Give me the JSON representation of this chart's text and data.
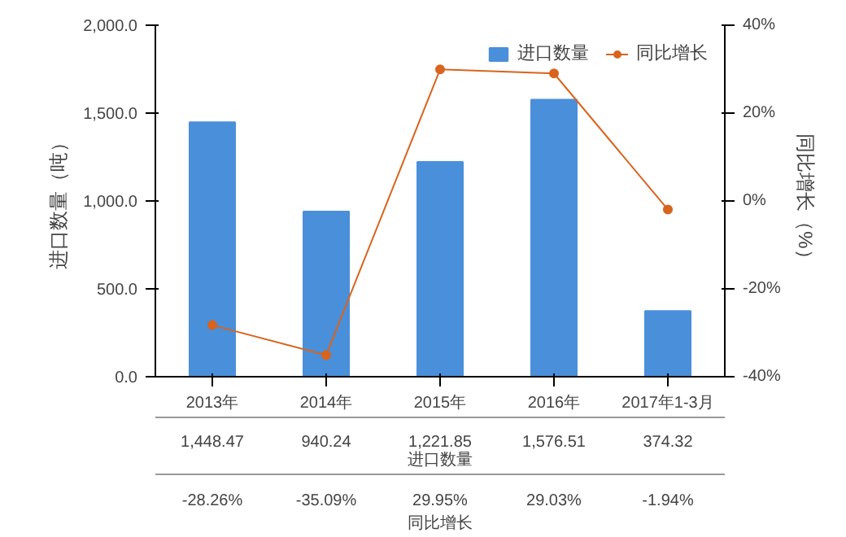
{
  "chart_data": {
    "type": "bar",
    "categories": [
      "2013年",
      "2014年",
      "2015年",
      "2016年",
      "2017年1-3月"
    ],
    "ylabel": "进口数量（吨）",
    "y2label": "同比增长（%）",
    "ylim": [
      0,
      2000
    ],
    "yticks": [
      {
        "value": 0,
        "label": "0.0"
      },
      {
        "value": 500,
        "label": "500.0"
      },
      {
        "value": 1000,
        "label": "1,000.0"
      },
      {
        "value": 1500,
        "label": "1,500.0"
      },
      {
        "value": 2000,
        "label": "2,000.0"
      }
    ],
    "y2lim": [
      -40,
      40
    ],
    "y2ticks": [
      {
        "value": -40,
        "label": "-40%"
      },
      {
        "value": -20,
        "label": "-20%"
      },
      {
        "value": 0,
        "label": "0%"
      },
      {
        "value": 20,
        "label": "20%"
      },
      {
        "value": 40,
        "label": "40%"
      }
    ],
    "series": [
      {
        "name": "进口数量",
        "color": "#4a8fd9",
        "values": [
          1448.47,
          940.24,
          1221.85,
          1576.51,
          374.32
        ],
        "value_labels": [
          "1,448.47",
          "940.24",
          "1,221.85",
          "1,576.51",
          "374.32"
        ]
      },
      {
        "name": "同比增长",
        "type": "line",
        "axis": "y2",
        "color": "#d8641e",
        "values": [
          -28.26,
          -35.09,
          29.95,
          29.03,
          -1.94
        ],
        "value_labels": [
          "-28.26%",
          "-35.09%",
          "29.95%",
          "29.03%",
          "-1.94%"
        ]
      }
    ],
    "marker": "circle",
    "grid": false,
    "legend": "top right"
  }
}
